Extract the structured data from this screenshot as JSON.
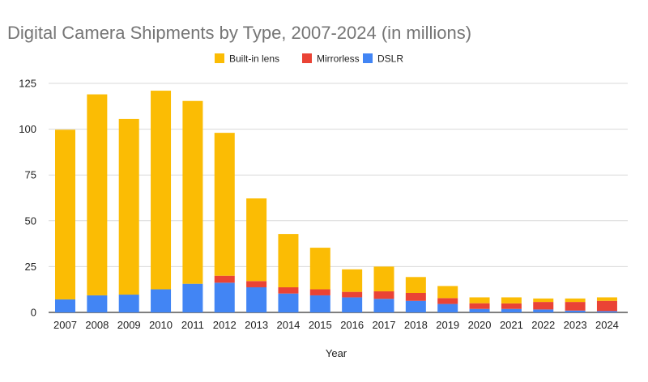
{
  "chart_data": {
    "type": "bar",
    "stacked": true,
    "title": "Digital Camera Shipments by Type, 2007-2024 (in millions)",
    "xlabel": "Year",
    "ylabel": "",
    "ylim": [
      0,
      125
    ],
    "yticks": [
      0,
      25,
      50,
      75,
      100,
      125
    ],
    "grid": true,
    "legend_position": "top",
    "categories": [
      "2007",
      "2008",
      "2009",
      "2010",
      "2011",
      "2012",
      "2013",
      "2014",
      "2015",
      "2016",
      "2017",
      "2018",
      "2019",
      "2020",
      "2021",
      "2022",
      "2023",
      "2024"
    ],
    "series": [
      {
        "name": "DSLR",
        "color": "#4285f4",
        "values": [
          7.1,
          9.3,
          9.7,
          12.6,
          15.6,
          16.2,
          13.7,
          10.3,
          9.3,
          8.2,
          7.4,
          6.3,
          4.6,
          1.9,
          1.9,
          1.6,
          1.0,
          0.7
        ]
      },
      {
        "name": "Mirrorless",
        "color": "#ea4335",
        "values": [
          0,
          0,
          0,
          0,
          0,
          3.8,
          3.4,
          3.4,
          3.3,
          3.0,
          4.1,
          4.3,
          3.2,
          3.1,
          3.0,
          4.1,
          4.7,
          5.6
        ]
      },
      {
        "name": "Built-in lens",
        "color": "#fbbc04",
        "values": [
          92.6,
          109.7,
          95.9,
          108.4,
          99.8,
          78.0,
          45.1,
          29.1,
          22.7,
          12.3,
          13.5,
          8.7,
          6.6,
          3.2,
          3.3,
          1.9,
          1.9,
          1.9
        ]
      }
    ],
    "legend_order": [
      "Built-in lens",
      "Mirrorless",
      "DSLR"
    ]
  }
}
